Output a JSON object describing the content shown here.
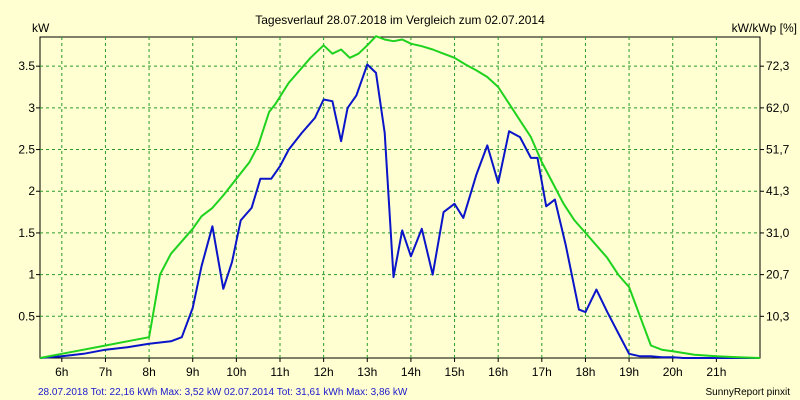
{
  "chart_data": {
    "type": "line",
    "title": "Tagesverlauf 28.07.2018 im Vergleich zum 02.07.2014",
    "ylabel_left": "kW",
    "ylabel_right": "kW/kWp [%]",
    "xlim": [
      5.5,
      22.0
    ],
    "ylim": [
      0,
      3.85
    ],
    "x_ticks": [
      6,
      7,
      8,
      9,
      10,
      11,
      12,
      13,
      14,
      15,
      16,
      17,
      18,
      19,
      20,
      21
    ],
    "x_tick_labels": [
      "6h",
      "7h",
      "8h",
      "9h",
      "10h",
      "11h",
      "12h",
      "13h",
      "14h",
      "15h",
      "16h",
      "17h",
      "18h",
      "19h",
      "20h",
      "21h"
    ],
    "y_ticks": [
      0.5,
      1,
      1.5,
      2,
      2.5,
      3,
      3.5
    ],
    "y_tick_labels": [
      "0.5",
      "1",
      "1.5",
      "2",
      "2.5",
      "3",
      "3.5"
    ],
    "y2_tick_labels": [
      "10,3",
      "20,7",
      "31,0",
      "41,3",
      "51,7",
      "62,0",
      "72,3"
    ],
    "grid": true,
    "series": [
      {
        "name": "28.07.2018",
        "color": "#0a14c8",
        "x": [
          5.5,
          6.0,
          6.5,
          7.0,
          7.5,
          8.0,
          8.5,
          8.75,
          9.0,
          9.2,
          9.45,
          9.7,
          9.9,
          10.1,
          10.35,
          10.55,
          10.8,
          11.0,
          11.2,
          11.5,
          11.8,
          12.0,
          12.2,
          12.4,
          12.55,
          12.75,
          13.0,
          13.2,
          13.4,
          13.6,
          13.8,
          14.0,
          14.25,
          14.5,
          14.75,
          15.0,
          15.2,
          15.5,
          15.75,
          16.0,
          16.25,
          16.5,
          16.75,
          16.9,
          17.1,
          17.3,
          17.55,
          17.85,
          18.0,
          18.25,
          18.5,
          18.75,
          19.0,
          19.25,
          19.5,
          19.75,
          20.0,
          20.25,
          20.5,
          21.0,
          21.5,
          22.0
        ],
        "y": [
          0.0,
          0.02,
          0.05,
          0.1,
          0.13,
          0.17,
          0.2,
          0.25,
          0.6,
          1.1,
          1.58,
          0.83,
          1.15,
          1.65,
          1.8,
          2.15,
          2.15,
          2.3,
          2.5,
          2.7,
          2.88,
          3.1,
          3.08,
          2.6,
          3.0,
          3.15,
          3.52,
          3.42,
          2.7,
          0.97,
          1.53,
          1.22,
          1.55,
          1.0,
          1.75,
          1.85,
          1.68,
          2.2,
          2.55,
          2.1,
          2.72,
          2.65,
          2.4,
          2.4,
          1.82,
          1.9,
          1.35,
          0.58,
          0.55,
          0.82,
          0.55,
          0.3,
          0.05,
          0.02,
          0.02,
          0.01,
          0.01,
          0.0,
          0.0,
          0.0,
          0.0,
          0.0
        ]
      },
      {
        "name": "02.07.2014",
        "color": "#1ed21e",
        "x": [
          5.5,
          6.0,
          6.5,
          7.0,
          7.5,
          8.0,
          8.25,
          8.5,
          8.75,
          9.0,
          9.2,
          9.45,
          9.7,
          10.0,
          10.3,
          10.5,
          10.75,
          10.9,
          11.2,
          11.45,
          11.7,
          12.0,
          12.2,
          12.4,
          12.6,
          12.8,
          13.0,
          13.2,
          13.4,
          13.6,
          13.8,
          14.0,
          14.25,
          14.5,
          14.75,
          15.0,
          15.25,
          15.5,
          15.75,
          16.0,
          16.25,
          16.5,
          16.75,
          17.0,
          17.25,
          17.5,
          17.75,
          18.0,
          18.25,
          18.5,
          18.75,
          19.0,
          19.25,
          19.5,
          19.75,
          20.0,
          20.25,
          20.5,
          20.75,
          21.0,
          21.5,
          22.0
        ],
        "y": [
          0.0,
          0.05,
          0.1,
          0.15,
          0.2,
          0.25,
          1.0,
          1.25,
          1.4,
          1.55,
          1.7,
          1.8,
          1.95,
          2.15,
          2.35,
          2.55,
          2.95,
          3.05,
          3.3,
          3.45,
          3.6,
          3.75,
          3.65,
          3.7,
          3.6,
          3.65,
          3.75,
          3.86,
          3.82,
          3.8,
          3.82,
          3.77,
          3.74,
          3.7,
          3.65,
          3.6,
          3.52,
          3.45,
          3.37,
          3.25,
          3.05,
          2.85,
          2.65,
          2.35,
          2.1,
          1.85,
          1.65,
          1.5,
          1.35,
          1.2,
          1.0,
          0.85,
          0.5,
          0.15,
          0.1,
          0.08,
          0.06,
          0.04,
          0.03,
          0.02,
          0.01,
          0.0
        ]
      }
    ]
  },
  "footer": {
    "series1_text": "28.07.2018 Tot: 22,16 kWh Max: 3,52 kW",
    "series2_text": "02.07.2014 Tot: 31,61 kWh Max: 3,86 kW",
    "credit": "SunnyReport pinxit"
  }
}
